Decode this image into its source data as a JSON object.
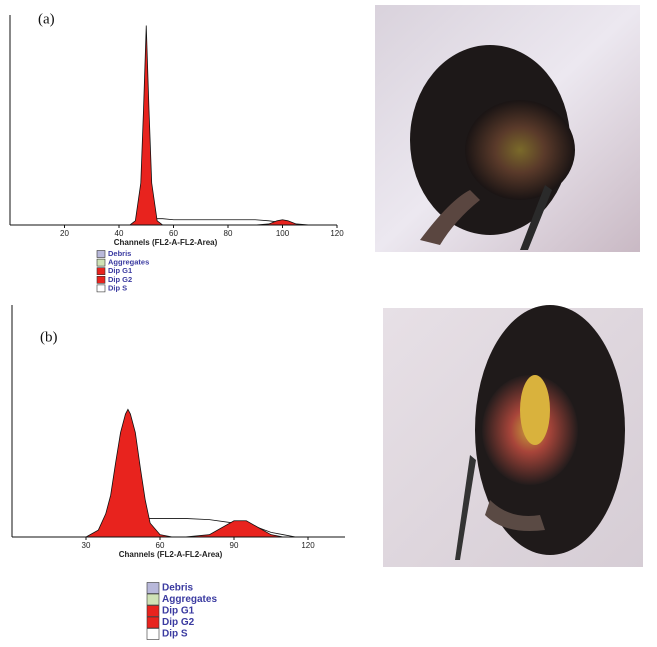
{
  "chart_data": [
    {
      "type": "area",
      "title": "(a)",
      "x_label": "Channels (FL2-A-FL2-Area)",
      "xlim": [
        0,
        120
      ],
      "xticks": [
        20,
        40,
        60,
        80,
        100,
        120
      ],
      "ylim": [
        0,
        100
      ],
      "x": [
        40,
        44,
        46,
        48,
        49,
        50,
        51,
        52,
        54,
        56,
        60,
        70,
        80,
        90,
        95,
        98,
        100,
        102,
        105,
        110
      ],
      "series": [
        {
          "name": "Debris",
          "color": "#b8b8da",
          "values": [
            0,
            0,
            0,
            0,
            0,
            0,
            0,
            0,
            0,
            0,
            0,
            0,
            0,
            0,
            0,
            0,
            0,
            0,
            0,
            0
          ]
        },
        {
          "name": "Aggregates",
          "color": "#cfe2b6",
          "values": [
            0,
            0,
            0,
            0,
            0,
            0,
            0,
            0,
            0,
            0,
            0,
            0,
            0,
            0,
            0,
            0,
            0,
            0,
            0,
            0
          ]
        },
        {
          "name": "Dip G1",
          "color": "#e8231e",
          "values": [
            0,
            0,
            2,
            20,
            55,
            95,
            55,
            20,
            2,
            0,
            0,
            0,
            0,
            0,
            0,
            0,
            0,
            0,
            0,
            0
          ]
        },
        {
          "name": "Dip G2",
          "color": "#e8231e",
          "values": [
            0,
            0,
            0,
            0,
            0,
            0,
            0,
            0,
            0,
            0,
            0,
            0,
            0,
            0,
            0.5,
            2,
            2.5,
            2,
            0.5,
            0
          ]
        },
        {
          "name": "Dip S",
          "color": "#ffffff",
          "values": [
            0,
            0,
            0.5,
            1,
            1.5,
            2,
            2,
            2,
            3,
            3,
            2.5,
            2.5,
            2.5,
            2.5,
            2,
            1.5,
            1,
            0.5,
            0,
            0
          ]
        }
      ]
    },
    {
      "type": "area",
      "title": "(b)",
      "x_label": "Channels (FL2-A-FL2-Area)",
      "xlim": [
        0,
        135
      ],
      "xticks": [
        30,
        60,
        90,
        120
      ],
      "ylim": [
        0,
        100
      ],
      "x": [
        30,
        35,
        38,
        40,
        42,
        44,
        46,
        47,
        48,
        50,
        52,
        54,
        56,
        60,
        65,
        70,
        80,
        90,
        95,
        100,
        105,
        110,
        115,
        120
      ],
      "series": [
        {
          "name": "Debris",
          "color": "#b8b8da",
          "values": [
            0,
            0,
            0,
            0,
            0,
            0,
            0,
            0,
            0,
            0,
            0,
            0,
            0,
            0,
            0,
            0,
            0,
            0,
            0,
            0,
            0,
            0,
            0,
            0
          ]
        },
        {
          "name": "Aggregates",
          "color": "#cfe2b6",
          "values": [
            0,
            0,
            0,
            0,
            0,
            0,
            0,
            0,
            0,
            0,
            0,
            0,
            0,
            0,
            0,
            0,
            0,
            0,
            0,
            0,
            0,
            0,
            0,
            0
          ]
        },
        {
          "name": "Dip G1",
          "color": "#e8231e",
          "values": [
            0,
            3,
            10,
            18,
            32,
            45,
            53,
            55,
            53,
            45,
            30,
            16,
            6,
            1,
            0,
            0,
            0,
            0,
            0,
            0,
            0,
            0,
            0,
            0
          ]
        },
        {
          "name": "Dip G2",
          "color": "#e8231e",
          "values": [
            0,
            0,
            0,
            0,
            0,
            0,
            0,
            0,
            0,
            0,
            0,
            0,
            0,
            0,
            0,
            0,
            1,
            7,
            7,
            4,
            1,
            0,
            0,
            0
          ]
        },
        {
          "name": "Dip S",
          "color": "#ffffff",
          "values": [
            0,
            1,
            2,
            3,
            3.5,
            4,
            6,
            6,
            6,
            7,
            8,
            8,
            8,
            8,
            8,
            8,
            7.5,
            6,
            5,
            4,
            2,
            1,
            0,
            0
          ]
        }
      ]
    }
  ]
}
